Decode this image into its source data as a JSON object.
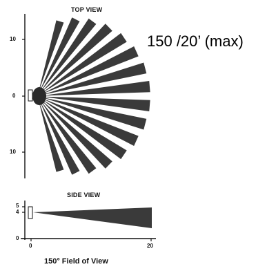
{
  "top_view": {
    "title": "TOP VIEW",
    "ticks": [
      "10",
      "0",
      "10"
    ]
  },
  "spec_label": "150 /20’ (max)",
  "side_view": {
    "title": "SIDE VIEW",
    "y_ticks": [
      "5",
      "4",
      "0"
    ],
    "x_ticks": [
      "0",
      "20"
    ]
  },
  "caption": "150° Field of View",
  "colors": {
    "zone_fill": "#3a3a3a",
    "axis": "#111111"
  }
}
